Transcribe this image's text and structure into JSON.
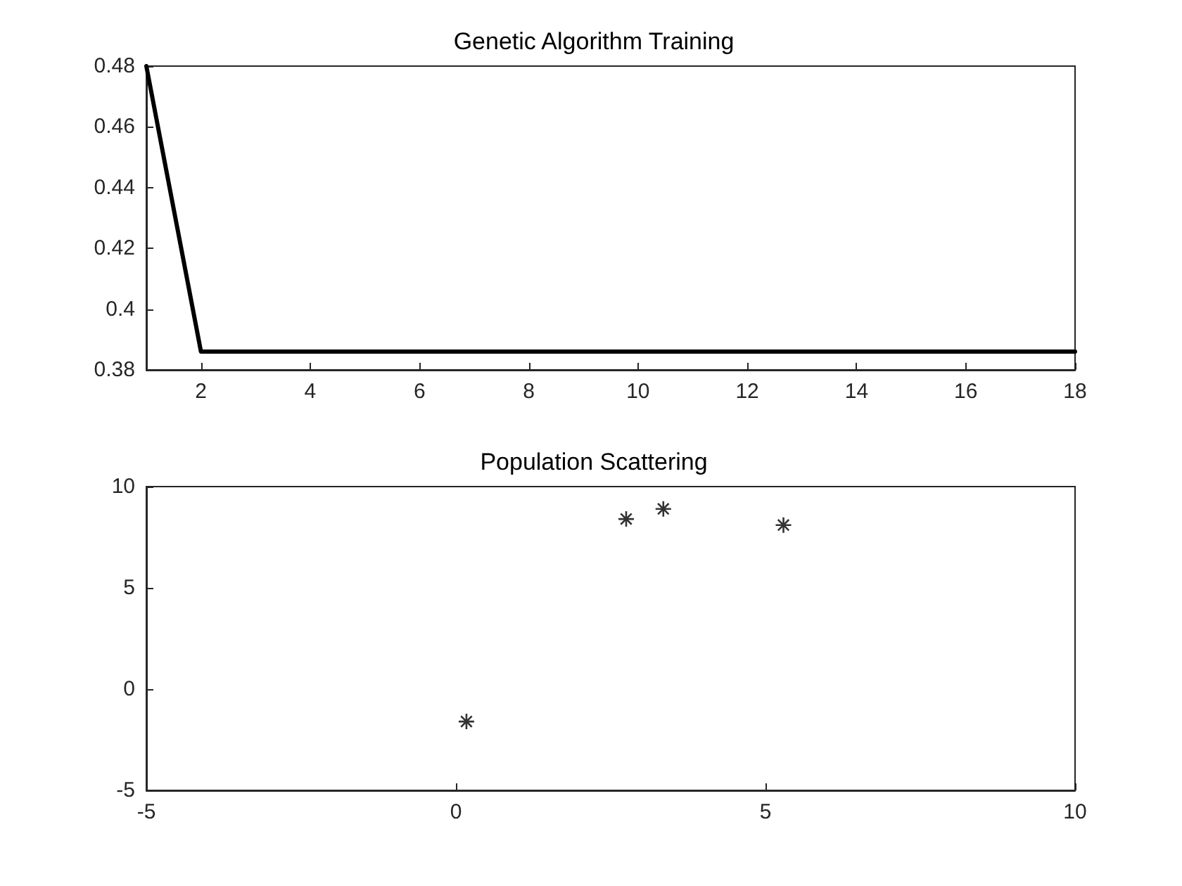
{
  "chart_data": [
    {
      "type": "line",
      "title": "Genetic Algorithm Training",
      "x": [
        1,
        2,
        3,
        4,
        5,
        6,
        7,
        8,
        9,
        10,
        11,
        12,
        13,
        14,
        15,
        16,
        17,
        18
      ],
      "series": [
        {
          "color": "#000000",
          "values": [
            0.48,
            0.386,
            0.386,
            0.386,
            0.386,
            0.386,
            0.386,
            0.386,
            0.386,
            0.386,
            0.386,
            0.386,
            0.386,
            0.386,
            0.386,
            0.386,
            0.386,
            0.386
          ]
        }
      ],
      "xlim": [
        1,
        18
      ],
      "xticks": [
        2,
        4,
        6,
        8,
        10,
        12,
        14,
        16,
        18
      ],
      "ylim": [
        0.38,
        0.48
      ],
      "yticks": [
        0.38,
        0.4,
        0.42,
        0.44,
        0.46,
        0.48
      ],
      "grid": false,
      "marker": "none",
      "line_style": "solid"
    },
    {
      "type": "scatter",
      "title": "Population Scattering",
      "x": [
        0.17,
        2.75,
        3.35,
        5.29
      ],
      "series": [
        {
          "color": "#000000",
          "values": [
            -1.6,
            8.4,
            8.9,
            8.1
          ]
        }
      ],
      "xlim": [
        -5,
        10
      ],
      "xticks": [
        -5,
        0,
        5,
        10
      ],
      "ylim": [
        -5,
        10
      ],
      "yticks": [
        -5,
        0,
        5,
        10
      ],
      "grid": false,
      "marker": "cross"
    }
  ]
}
